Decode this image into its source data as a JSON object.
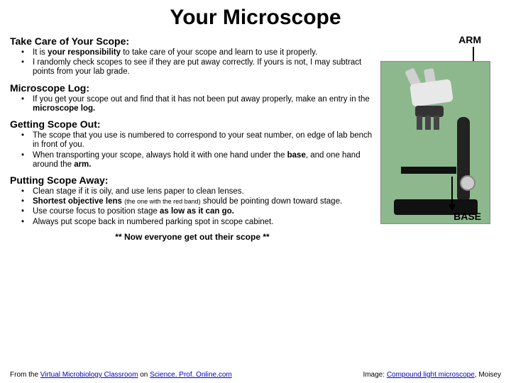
{
  "title": "Your Microscope",
  "sections": {
    "care": {
      "heading": "Take Care of Your Scope:",
      "items": [
        "It is <span class='bold'>your</span> <span class='bold'>responsibility</span> to take care of your scope and learn to use it properly.",
        "I randomly check scopes to see if they are put away correctly. If yours is not, I may subtract points from your lab grade."
      ]
    },
    "log": {
      "heading": "Microscope Log:",
      "items": [
        "If you get your scope out and find that it has not been put away properly, make an entry in the <span class='bold'>microscope log.</span>"
      ]
    },
    "out": {
      "heading": "Getting Scope Out:",
      "items": [
        "The scope that you use is numbered to correspond to your seat number, on edge of lab bench in front of you.",
        "When transporting your scope, always hold it with one hand under the <span class='bold'>base</span>, and one hand around the <span class='bold'>arm.</span>"
      ]
    },
    "away": {
      "heading": "Putting Scope Away:",
      "items": [
        "Clean stage if it is oily, and use lens paper to clean lenses.",
        "<span class='bold'>Shortest objective lens</span> <span class='tiny'>(the one with the red band)</span> should be pointing down toward stage.",
        "Use course focus to position stage <span class='bold'>as low as it can go.</span>",
        "Always put scope back in numbered parking spot in scope cabinet."
      ]
    }
  },
  "callout": "** Now everyone get out their scope **",
  "labels": {
    "arm": "ARM",
    "base": "BASE"
  },
  "footer": {
    "left_pre": "From the ",
    "left_link1": "Virtual Microbiology Classroom",
    "left_mid": " on ",
    "left_link2": "Science. Prof. Online.com",
    "right_pre": "Image: ",
    "right_link": "Compound light microscope",
    "right_post": ", Moisey"
  },
  "colors": {
    "title": "#000000",
    "link": "#0000cc",
    "image_bg": "#8db88d"
  }
}
